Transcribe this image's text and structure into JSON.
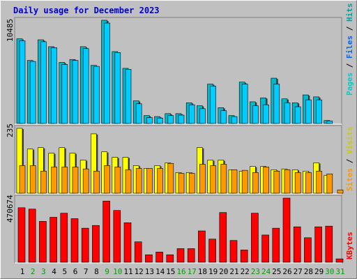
{
  "chart_data": {
    "type": "bar",
    "title": "Daily usage for December 2023",
    "days": [
      "1",
      "2",
      "3",
      "4",
      "5",
      "6",
      "7",
      "8",
      "9",
      "10",
      "11",
      "12",
      "13",
      "14",
      "15",
      "16",
      "17",
      "18",
      "19",
      "20",
      "21",
      "22",
      "23",
      "24",
      "25",
      "26",
      "27",
      "28",
      "29",
      "30",
      "31"
    ],
    "weekend_days": [
      "2",
      "3",
      "9",
      "10",
      "16",
      "17",
      "23",
      "24",
      "30",
      "31"
    ],
    "top_panel": {
      "ymax_label": "10485",
      "ymax": 10485,
      "right_label": {
        "pages": "Pages",
        "sep1": " / ",
        "files": "Files",
        "sep2": " / ",
        "hits": "Hits"
      },
      "series": [
        {
          "name": "Hits",
          "color": "#00b8cc",
          "values": [
            8600,
            6400,
            8500,
            7800,
            6200,
            6500,
            7800,
            5900,
            10485,
            7300,
            5600,
            2300,
            800,
            700,
            1000,
            1000,
            2100,
            1800,
            4000,
            1600,
            800,
            4200,
            2200,
            2600,
            4600,
            2500,
            2100,
            2900,
            2700,
            300,
            null
          ]
        },
        {
          "name": "Files",
          "color": "#00ccff",
          "values": [
            8400,
            6300,
            8300,
            7700,
            6000,
            6400,
            7600,
            5800,
            10200,
            7200,
            5500,
            2000,
            600,
            550,
            800,
            850,
            1900,
            1500,
            3800,
            1300,
            700,
            4000,
            1800,
            1900,
            4000,
            2100,
            1700,
            2400,
            2400,
            250,
            null
          ]
        },
        {
          "name": "Pages",
          "color": "#0033cc",
          "values": [
            null,
            null,
            null,
            null,
            null,
            null,
            null,
            null,
            null,
            null,
            null,
            null,
            null,
            null,
            null,
            null,
            null,
            null,
            null,
            null,
            null,
            null,
            null,
            null,
            null,
            null,
            null,
            null,
            null,
            null,
            null
          ]
        }
      ]
    },
    "mid_panel": {
      "ymax_label": "235",
      "ymax": 235,
      "right_label": {
        "sites": "Sites",
        "sep": " / ",
        "visits": "Visits"
      },
      "series": [
        {
          "name": "Visits",
          "color": "#ffff00",
          "values": [
            235,
            160,
            165,
            145,
            165,
            145,
            120,
            215,
            150,
            130,
            130,
            100,
            90,
            100,
            110,
            75,
            75,
            165,
            120,
            120,
            85,
            80,
            97,
            97,
            85,
            88,
            85,
            80,
            110,
            65,
            null
          ]
        },
        {
          "name": "Sites",
          "color": "#ff9900",
          "values": [
            100,
            100,
            80,
            95,
            95,
            95,
            88,
            80,
            100,
            95,
            85,
            90,
            90,
            90,
            108,
            72,
            72,
            105,
            100,
            105,
            85,
            83,
            75,
            95,
            80,
            85,
            75,
            75,
            80,
            70,
            12
          ]
        }
      ]
    },
    "bottom_panel": {
      "ymax_label": "470674",
      "ymax": 470674,
      "right_label": "KBytes",
      "series": [
        {
          "name": "KBytes",
          "color": "#ff0000",
          "values": [
            400000,
            390000,
            300000,
            330000,
            360000,
            320000,
            250000,
            270000,
            449000,
            380000,
            290000,
            150000,
            55000,
            75000,
            55000,
            100000,
            100000,
            230000,
            170000,
            365000,
            160000,
            90000,
            360000,
            200000,
            250000,
            470674,
            260000,
            180000,
            260000,
            265000,
            25000
          ]
        }
      ]
    },
    "colors": {
      "background": "#c0c0c0",
      "title": "#0000cc",
      "weekday_label": "#000000",
      "weekend_label": "#00a000",
      "hits": "#00b8cc",
      "files": "#0066ff",
      "pages": "#00cccc",
      "visits": "#cccc00",
      "sites": "#ff9900",
      "kbytes": "#ff0000"
    }
  }
}
